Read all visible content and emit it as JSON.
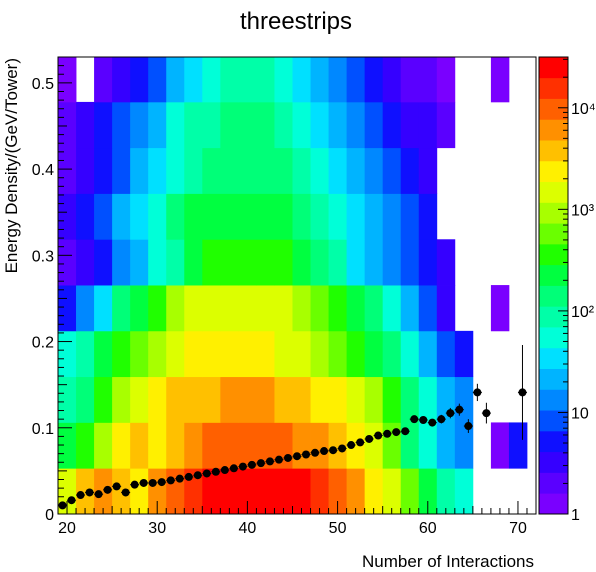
{
  "chart_data": {
    "type": "heatmap",
    "title": "threestrips",
    "xlabel": "Number of Interactions",
    "ylabel": "Energy Density/(GeV/Tower)",
    "xlim": [
      19,
      72
    ],
    "ylim": [
      0,
      0.53
    ],
    "x_ticks": [
      "20",
      "30",
      "40",
      "50",
      "60",
      "70"
    ],
    "y_ticks": [
      "0",
      "0.1",
      "0.2",
      "0.3",
      "0.4",
      "0.5"
    ],
    "z_scale": "log",
    "z_tick_labels": [
      "1",
      "10",
      "10²",
      "10³",
      "10⁴"
    ],
    "palette": [
      "#7a00ff",
      "#5a00ff",
      "#3500ff",
      "#0f10ff",
      "#0050ff",
      "#0088ff",
      "#00b4ff",
      "#00e0ff",
      "#00ffd8",
      "#00ffa8",
      "#00ff78",
      "#00ff40",
      "#20ff00",
      "#6aff00",
      "#a8ff00",
      "#dcff00",
      "#fff000",
      "#ffc000",
      "#ff9000",
      "#ff6000",
      "#ff3000",
      "#ff0000"
    ],
    "cell_bins": {
      "x_start": 19,
      "x_step": 2,
      "x_count": 26,
      "y_start": 0,
      "y_step": 0.0531,
      "y_count": 10
    },
    "cells": [
      [
        15,
        17,
        18,
        17,
        16,
        18,
        19,
        20,
        21,
        21,
        21,
        21,
        21,
        21,
        20,
        19,
        18,
        16,
        15,
        13,
        11,
        9,
        8,
        null,
        null,
        null
      ],
      [
        11,
        12,
        14,
        16,
        17,
        16,
        17,
        18,
        19,
        19,
        19,
        19,
        19,
        18,
        18,
        17,
        16,
        15,
        13,
        10,
        8,
        6,
        5,
        null,
        0,
        3
      ],
      [
        9,
        10,
        12,
        14,
        15,
        16,
        17,
        17,
        17,
        18,
        18,
        18,
        17,
        17,
        16,
        16,
        15,
        14,
        12,
        10,
        8,
        6,
        5,
        null,
        null,
        null
      ],
      [
        8,
        9,
        11,
        12,
        13,
        14,
        15,
        16,
        16,
        16,
        16,
        16,
        15,
        15,
        14,
        13,
        12,
        11,
        10,
        8,
        6,
        4,
        3,
        null,
        null,
        null
      ],
      [
        3,
        5,
        7,
        10,
        11,
        12,
        14,
        15,
        15,
        15,
        15,
        15,
        15,
        14,
        13,
        12,
        11,
        10,
        8,
        6,
        4,
        2,
        null,
        null,
        0,
        null
      ],
      [
        1,
        2,
        3,
        5,
        6,
        8,
        9,
        11,
        12,
        12,
        12,
        12,
        12,
        11,
        10,
        9,
        7,
        6,
        5,
        4,
        3,
        2,
        null,
        null,
        null,
        null
      ],
      [
        2,
        3,
        4,
        6,
        7,
        8,
        10,
        11,
        11,
        11,
        11,
        11,
        11,
        10,
        9,
        8,
        7,
        6,
        5,
        4,
        3,
        null,
        null,
        null,
        null,
        null
      ],
      [
        1,
        2,
        3,
        4,
        6,
        7,
        8,
        9,
        10,
        10,
        10,
        10,
        10,
        9,
        8,
        7,
        6,
        5,
        4,
        3,
        2,
        null,
        null,
        null,
        null,
        null
      ],
      [
        1,
        2,
        3,
        4,
        5,
        6,
        8,
        9,
        9,
        10,
        10,
        10,
        9,
        8,
        7,
        6,
        5,
        4,
        3,
        2,
        2,
        1,
        null,
        null,
        null,
        null
      ],
      [
        0,
        null,
        1,
        2,
        3,
        4,
        6,
        7,
        8,
        9,
        9,
        9,
        8,
        7,
        6,
        5,
        4,
        3,
        2,
        1,
        1,
        0,
        null,
        null,
        0,
        null
      ]
    ],
    "profile_x": [
      19.5,
      20.5,
      21.5,
      22.5,
      23.5,
      24.5,
      25.5,
      26.5,
      27.5,
      28.5,
      29.5,
      30.5,
      31.5,
      32.5,
      33.5,
      34.5,
      35.5,
      36.5,
      37.5,
      38.5,
      39.5,
      40.5,
      41.5,
      42.5,
      43.5,
      44.5,
      45.5,
      46.5,
      47.5,
      48.5,
      49.5,
      50.5,
      51.5,
      52.5,
      53.5,
      54.5,
      55.5,
      56.5,
      57.5,
      58.5,
      59.5,
      60.5,
      61.5,
      62.5,
      63.5,
      64.5,
      65.5,
      66.5,
      70.5
    ],
    "profile_y": [
      0.01,
      0.016,
      0.022,
      0.025,
      0.023,
      0.028,
      0.032,
      0.025,
      0.034,
      0.036,
      0.036,
      0.037,
      0.039,
      0.041,
      0.043,
      0.045,
      0.047,
      0.049,
      0.051,
      0.053,
      0.055,
      0.057,
      0.059,
      0.061,
      0.063,
      0.065,
      0.067,
      0.069,
      0.071,
      0.073,
      0.074,
      0.076,
      0.08,
      0.083,
      0.087,
      0.091,
      0.093,
      0.095,
      0.096,
      0.11,
      0.109,
      0.106,
      0.11,
      0.117,
      0.121,
      0.102,
      0.141,
      0.117,
      0.141
    ],
    "profile_yerr": [
      0.003,
      0.003,
      0.002,
      0.002,
      0.002,
      0.002,
      0.002,
      0.002,
      0.002,
      0.002,
      0.002,
      0.002,
      0.002,
      0.002,
      0.002,
      0.002,
      0.002,
      0.002,
      0.002,
      0.002,
      0.002,
      0.002,
      0.002,
      0.002,
      0.002,
      0.002,
      0.002,
      0.002,
      0.002,
      0.002,
      0.002,
      0.002,
      0.002,
      0.002,
      0.002,
      0.002,
      0.002,
      0.002,
      0.002,
      0.003,
      0.003,
      0.004,
      0.005,
      0.006,
      0.007,
      0.008,
      0.01,
      0.012,
      0.055
    ]
  }
}
